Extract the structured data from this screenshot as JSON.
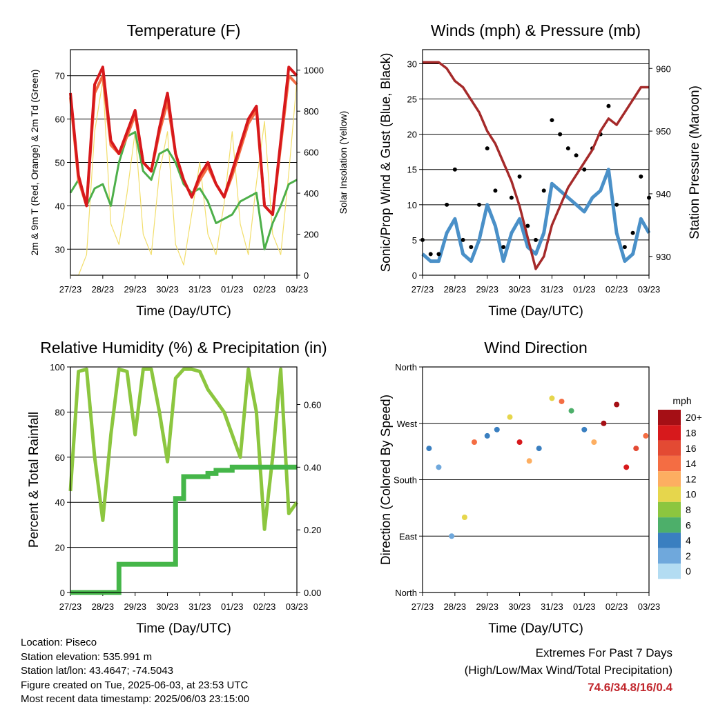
{
  "colors": {
    "temp2m": "#d7191c",
    "temp9m": "#f46d43",
    "dewpoint": "#4daf4a",
    "solar": "#f2de6b",
    "wind": "#4a90c8",
    "gust": "#000000",
    "pressure": "#a52a2a",
    "rh": "#8cc63f",
    "precip": "#45b649",
    "extremes": "#c1272d"
  },
  "x_ticks": [
    "27/23",
    "28/23",
    "29/23",
    "30/23",
    "31/23",
    "01/23",
    "02/23",
    "03/23"
  ],
  "chart_data": [
    {
      "type": "line",
      "title": "Temperature (F)",
      "xlabel": "Time (Day/UTC)",
      "ylabel": "2m & 9m T (Red, Orange) & 2m Td (Green)",
      "y2label": "Solar Insolation (Yellow)",
      "ylim": [
        24,
        76
      ],
      "yticks": [
        30,
        40,
        50,
        60,
        70
      ],
      "y2lim": [
        0,
        1100
      ],
      "y2ticks": [
        0,
        200,
        400,
        600,
        800,
        1000
      ],
      "grid": true,
      "x": [
        0,
        0.25,
        0.5,
        0.75,
        1.0,
        1.25,
        1.5,
        1.75,
        2.0,
        2.25,
        2.5,
        2.75,
        3.0,
        3.25,
        3.5,
        3.75,
        4.0,
        4.25,
        4.5,
        4.75,
        5.0,
        5.25,
        5.5,
        5.75,
        6.0,
        6.25,
        6.5,
        6.75,
        7.0
      ],
      "series": [
        {
          "name": "2m T",
          "values": [
            66,
            47,
            40,
            68,
            72,
            55,
            52,
            57,
            62,
            50,
            48,
            58,
            66,
            52,
            46,
            42,
            47,
            50,
            45,
            42,
            48,
            54,
            60,
            63,
            40,
            38,
            55,
            72,
            70
          ]
        },
        {
          "name": "9m T",
          "values": [
            65,
            46,
            40,
            66,
            70,
            54,
            52,
            56,
            61,
            50,
            48,
            57,
            64,
            52,
            46,
            42,
            46,
            49,
            45,
            42,
            47,
            53,
            59,
            62,
            40,
            38,
            54,
            70,
            68
          ]
        },
        {
          "name": "2m Td",
          "values": [
            43,
            46,
            40,
            44,
            45,
            40,
            50,
            56,
            57,
            48,
            46,
            52,
            53,
            50,
            45,
            43,
            44,
            41,
            36,
            37,
            38,
            41,
            42,
            43,
            30,
            36,
            40,
            45,
            46
          ]
        },
        {
          "name": "Solar",
          "values": [
            0,
            0,
            100,
            700,
            950,
            250,
            150,
            400,
            700,
            200,
            100,
            500,
            700,
            150,
            50,
            300,
            550,
            200,
            100,
            350,
            700,
            250,
            100,
            450,
            750,
            200,
            100,
            500,
            950
          ]
        }
      ]
    },
    {
      "type": "line",
      "title": "Winds (mph) & Pressure (mb)",
      "xlabel": "Time (Day/UTC)",
      "ylabel": "Sonic/Prop Wind & Gust (Blue, Black)",
      "y2label": "Station Pressure (Maroon)",
      "ylim": [
        0,
        32
      ],
      "yticks": [
        0,
        5,
        10,
        15,
        20,
        25,
        30
      ],
      "y2lim": [
        927,
        963
      ],
      "y2ticks": [
        930,
        940,
        950,
        960
      ],
      "grid": true,
      "x": [
        0,
        0.25,
        0.5,
        0.75,
        1.0,
        1.25,
        1.5,
        1.75,
        2.0,
        2.25,
        2.5,
        2.75,
        3.0,
        3.25,
        3.5,
        3.75,
        4.0,
        4.25,
        4.5,
        4.75,
        5.0,
        5.25,
        5.5,
        5.75,
        6.0,
        6.25,
        6.5,
        6.75,
        7.0
      ],
      "series": [
        {
          "name": "Wind",
          "values": [
            3,
            2,
            2,
            6,
            8,
            3,
            2,
            5,
            10,
            7,
            2,
            6,
            8,
            4,
            3,
            6,
            13,
            12,
            11,
            10,
            9,
            11,
            12,
            15,
            6,
            2,
            3,
            8,
            6
          ]
        },
        {
          "name": "Gust",
          "values": [
            5,
            3,
            3,
            10,
            15,
            5,
            4,
            10,
            18,
            12,
            4,
            11,
            14,
            7,
            5,
            12,
            22,
            20,
            18,
            17,
            15,
            18,
            20,
            24,
            10,
            4,
            6,
            14,
            11
          ]
        },
        {
          "name": "Pressure",
          "values": [
            961,
            961,
            961,
            960,
            958,
            957,
            955,
            953,
            950,
            948,
            945,
            942,
            938,
            933,
            928,
            930,
            935,
            938,
            941,
            943,
            945,
            947,
            950,
            952,
            951,
            953,
            955,
            957,
            957
          ]
        }
      ]
    },
    {
      "type": "line",
      "title": "Relative Humidity (%) & Precipitation (in)",
      "xlabel": "Time (Day/UTC)",
      "ylabel": "Percent & Total Rainfall",
      "ylim": [
        0,
        100
      ],
      "yticks": [
        0,
        20,
        40,
        60,
        80,
        100
      ],
      "y2lim": [
        0,
        0.72
      ],
      "y2ticks": [
        "0.00",
        "0.20",
        "0.40",
        "0.60"
      ],
      "grid": true,
      "x": [
        0,
        0.25,
        0.5,
        0.75,
        1.0,
        1.25,
        1.5,
        1.75,
        2.0,
        2.25,
        2.5,
        2.75,
        3.0,
        3.25,
        3.5,
        3.75,
        4.0,
        4.25,
        4.5,
        4.75,
        5.0,
        5.25,
        5.5,
        5.75,
        6.0,
        6.25,
        6.5,
        6.75,
        7.0
      ],
      "series": [
        {
          "name": "RH",
          "values": [
            45,
            98,
            99,
            60,
            32,
            70,
            99,
            98,
            70,
            99,
            99,
            80,
            58,
            95,
            99,
            99,
            98,
            90,
            85,
            80,
            70,
            60,
            99,
            80,
            28,
            60,
            99,
            35,
            40
          ]
        },
        {
          "name": "Precip",
          "values": [
            0,
            0,
            0,
            0,
            0,
            0,
            0.09,
            0.09,
            0.09,
            0.09,
            0.09,
            0.09,
            0.09,
            0.3,
            0.37,
            0.37,
            0.37,
            0.38,
            0.39,
            0.39,
            0.4,
            0.4,
            0.4,
            0.4,
            0.4,
            0.4,
            0.4,
            0.4,
            0.4
          ]
        }
      ]
    },
    {
      "type": "scatter",
      "title": "Wind Direction",
      "xlabel": "Time (Day/UTC)",
      "ylabel": "Direction (Colored By Speed)",
      "ylim": [
        0,
        360
      ],
      "yticks": [
        "North",
        "East",
        "South",
        "West",
        "North"
      ],
      "grid": true,
      "legend": {
        "title": "mph",
        "labels": [
          "20+",
          "18",
          "16",
          "14",
          "12",
          "10",
          "8",
          "6",
          "4",
          "2",
          "0"
        ],
        "colors": [
          "#a50f15",
          "#d7191c",
          "#e34a33",
          "#f46d43",
          "#fdae61",
          "#e6d64c",
          "#8cc63f",
          "#4daf6a",
          "#3a7fc0",
          "#6fa8dc",
          "#b3dcf2"
        ]
      },
      "x": [
        0.2,
        0.5,
        0.9,
        1.3,
        1.6,
        2.0,
        2.3,
        2.7,
        3.0,
        3.3,
        3.6,
        4.0,
        4.3,
        4.6,
        5.0,
        5.3,
        5.6,
        6.0,
        6.3,
        6.6,
        6.9
      ],
      "series": [
        {
          "name": "Direction",
          "values": [
            230,
            200,
            90,
            120,
            240,
            250,
            260,
            280,
            240,
            210,
            230,
            310,
            305,
            290,
            260,
            240,
            270,
            300,
            200,
            230,
            250
          ]
        }
      ]
    }
  ],
  "info": {
    "location": "Location: Piseco",
    "elevation": "Station elevation: 535.991 m",
    "latlon": "Station lat/lon: 43.4647; -74.5043",
    "created": "Figure created on Tue, 2025-06-03, at 23:53 UTC",
    "recent": "Most recent data timestamp: 2025/06/03 23:15:00"
  },
  "extremes": {
    "title": "Extremes For Past 7 Days",
    "subtitle": "(High/Low/Max Wind/Total Precipitation)",
    "values": "74.6/34.8/16/0.4"
  }
}
